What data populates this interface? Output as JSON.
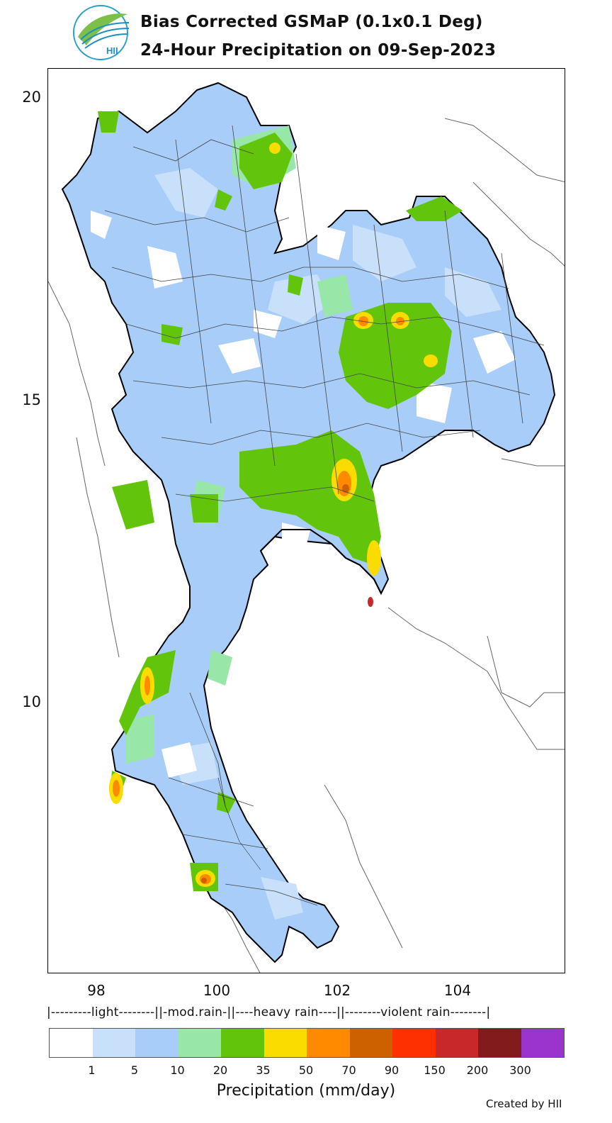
{
  "header": {
    "title_line1": "Bias Corrected GSMaP (0.1x0.1 Deg)",
    "title_line2": "24-Hour Precipitation on 09-Sep-2023",
    "logo_text": "HII"
  },
  "axes": {
    "y_ticks": [
      "20",
      "15",
      "10"
    ],
    "x_ticks": [
      "98",
      "100",
      "102",
      "104"
    ]
  },
  "legend": {
    "category_line": "|---------light--------||-mod.rain-||----heavy rain----||--------violent rain--------|",
    "colors": [
      "#ffffff",
      "#c8e0fa",
      "#a9cdf9",
      "#98e6a8",
      "#62c50c",
      "#fadc00",
      "#ff8a00",
      "#cd6100",
      "#ff3000",
      "#c8282a",
      "#821c1c",
      "#9a34cc"
    ],
    "tick_labels": [
      "1",
      "5",
      "10",
      "20",
      "35",
      "50",
      "70",
      "90",
      "150",
      "200",
      "300"
    ],
    "axis_label": "Precipitation (mm/day)"
  },
  "footer": {
    "credit": "Created by HII"
  }
}
